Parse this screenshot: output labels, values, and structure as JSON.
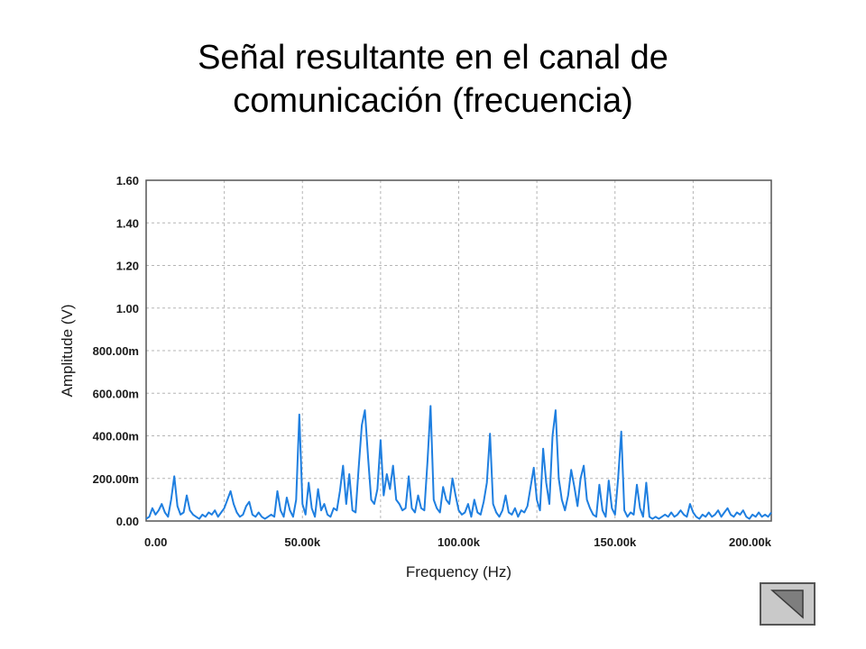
{
  "slide": {
    "title_line1": "Señal resultante en el canal de",
    "title_line2": "comunicación (frecuencia)"
  },
  "nav": {
    "icon": "back-triangle-icon"
  },
  "chart_data": {
    "type": "line",
    "xlabel": "Frequency (Hz)",
    "ylabel": "Amplitude (V)",
    "xlim": [
      0,
      200000
    ],
    "ylim": [
      0,
      1.6
    ],
    "x_ticks": [
      0,
      50000,
      100000,
      150000,
      200000
    ],
    "x_tick_labels": [
      "0.00",
      "50.00k",
      "100.00k",
      "150.00k",
      "200.00k"
    ],
    "y_ticks": [
      0,
      0.2,
      0.4,
      0.6,
      0.8,
      1.0,
      1.2,
      1.4,
      1.6
    ],
    "y_tick_labels": [
      "0.00",
      "200.00m",
      "400.00m",
      "600.00m",
      "800.00m",
      "1.00",
      "1.20",
      "1.40",
      "1.60"
    ],
    "grid": true,
    "color": "#1f7fe0",
    "series": [
      {
        "x": [
          0,
          1000,
          2000,
          3000,
          4000,
          5000,
          6000,
          7000,
          8000,
          9000,
          10000,
          11000,
          12000,
          13000,
          14000,
          15000,
          16000,
          17000,
          18000,
          19000,
          20000,
          21000,
          22000,
          23000,
          24000,
          25000,
          26000,
          27000,
          28000,
          29000,
          30000,
          31000,
          32000,
          33000,
          34000,
          35000,
          36000,
          37000,
          38000,
          39000,
          40000,
          41000,
          42000,
          43000,
          44000,
          45000,
          46000,
          47000,
          48000,
          49000,
          50000,
          51000,
          52000,
          53000,
          54000,
          55000,
          56000,
          57000,
          58000,
          59000,
          60000,
          61000,
          62000,
          63000,
          64000,
          65000,
          66000,
          67000,
          68000,
          69000,
          70000,
          71000,
          72000,
          73000,
          74000,
          75000,
          76000,
          77000,
          78000,
          79000,
          80000,
          81000,
          82000,
          83000,
          84000,
          85000,
          86000,
          87000,
          88000,
          89000,
          90000,
          91000,
          92000,
          93000,
          94000,
          95000,
          96000,
          97000,
          98000,
          99000,
          100000,
          101000,
          102000,
          103000,
          104000,
          105000,
          106000,
          107000,
          108000,
          109000,
          110000,
          111000,
          112000,
          113000,
          114000,
          115000,
          116000,
          117000,
          118000,
          119000,
          120000,
          121000,
          122000,
          123000,
          124000,
          125000,
          126000,
          127000,
          128000,
          129000,
          130000,
          131000,
          132000,
          133000,
          134000,
          135000,
          136000,
          137000,
          138000,
          139000,
          140000,
          141000,
          142000,
          143000,
          144000,
          145000,
          146000,
          147000,
          148000,
          149000,
          150000,
          151000,
          152000,
          153000,
          154000,
          155000,
          156000,
          157000,
          158000,
          159000,
          160000,
          161000,
          162000,
          163000,
          164000,
          165000,
          166000,
          167000,
          168000,
          169000,
          170000,
          171000,
          172000,
          173000,
          174000,
          175000,
          176000,
          177000,
          178000,
          179000,
          180000,
          181000,
          182000,
          183000,
          184000,
          185000,
          186000,
          187000,
          188000,
          189000,
          190000,
          191000,
          192000,
          193000,
          194000,
          195000,
          196000,
          197000,
          198000,
          199000,
          200000
        ],
        "values": [
          0.01,
          0.02,
          0.06,
          0.03,
          0.05,
          0.08,
          0.04,
          0.02,
          0.1,
          0.21,
          0.07,
          0.03,
          0.04,
          0.12,
          0.05,
          0.03,
          0.02,
          0.01,
          0.03,
          0.02,
          0.04,
          0.03,
          0.05,
          0.02,
          0.04,
          0.06,
          0.1,
          0.14,
          0.08,
          0.04,
          0.02,
          0.03,
          0.07,
          0.09,
          0.03,
          0.02,
          0.04,
          0.02,
          0.01,
          0.02,
          0.03,
          0.02,
          0.14,
          0.05,
          0.02,
          0.11,
          0.05,
          0.02,
          0.1,
          0.5,
          0.08,
          0.03,
          0.18,
          0.06,
          0.02,
          0.15,
          0.05,
          0.08,
          0.03,
          0.02,
          0.06,
          0.05,
          0.14,
          0.26,
          0.08,
          0.22,
          0.05,
          0.04,
          0.25,
          0.45,
          0.52,
          0.3,
          0.1,
          0.08,
          0.15,
          0.38,
          0.12,
          0.22,
          0.15,
          0.26,
          0.1,
          0.08,
          0.05,
          0.06,
          0.21,
          0.06,
          0.04,
          0.12,
          0.06,
          0.05,
          0.28,
          0.54,
          0.1,
          0.06,
          0.04,
          0.16,
          0.1,
          0.08,
          0.2,
          0.12,
          0.05,
          0.03,
          0.04,
          0.08,
          0.02,
          0.1,
          0.04,
          0.03,
          0.09,
          0.18,
          0.41,
          0.08,
          0.04,
          0.02,
          0.05,
          0.12,
          0.04,
          0.03,
          0.06,
          0.02,
          0.05,
          0.04,
          0.07,
          0.16,
          0.25,
          0.1,
          0.05,
          0.34,
          0.18,
          0.08,
          0.4,
          0.52,
          0.2,
          0.1,
          0.05,
          0.12,
          0.24,
          0.16,
          0.07,
          0.2,
          0.26,
          0.1,
          0.06,
          0.03,
          0.02,
          0.17,
          0.05,
          0.02,
          0.19,
          0.06,
          0.03,
          0.2,
          0.42,
          0.05,
          0.02,
          0.04,
          0.03,
          0.17,
          0.06,
          0.02,
          0.18,
          0.02,
          0.01,
          0.02,
          0.01,
          0.02,
          0.03,
          0.02,
          0.04,
          0.02,
          0.03,
          0.05,
          0.03,
          0.02,
          0.08,
          0.04,
          0.02,
          0.01,
          0.03,
          0.02,
          0.04,
          0.02,
          0.03,
          0.05,
          0.02,
          0.04,
          0.06,
          0.03,
          0.02,
          0.04,
          0.03,
          0.05,
          0.02,
          0.01,
          0.03,
          0.02,
          0.04,
          0.02,
          0.03,
          0.02,
          0.04
        ]
      }
    ]
  }
}
